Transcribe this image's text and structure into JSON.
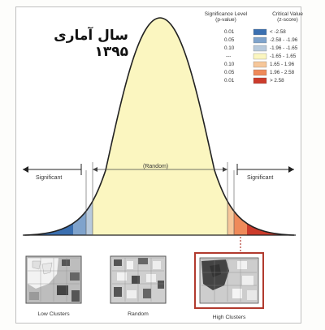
{
  "title": "سال آماری ۱۳۹۵",
  "legend": {
    "col1_header": [
      "Significance Level",
      "(p-value)"
    ],
    "col2_header": [
      "Critical Value",
      "(z-score)"
    ],
    "rows": [
      {
        "p": "0.01",
        "z": "< -2.58",
        "color": "#3a6fb0"
      },
      {
        "p": "0.05",
        "z": "-2.58 - -1.96",
        "color": "#7fa3cc"
      },
      {
        "p": "0.10",
        "z": "-1.96 - -1.65",
        "color": "#b8cadc"
      },
      {
        "p": "---",
        "z": "-1.65 - 1.65",
        "color": "#fbf6c0"
      },
      {
        "p": "0.10",
        "z": "1.65 - 1.96",
        "color": "#f6c79a"
      },
      {
        "p": "0.05",
        "z": "1.96 - 2.58",
        "color": "#ef8a5a"
      },
      {
        "p": "0.01",
        "z": "> 2.58",
        "color": "#cc3b2b"
      }
    ]
  },
  "curve": {
    "left_label": "Significant",
    "center_label": "(Random)",
    "right_label": "Significant"
  },
  "thumbnails": [
    {
      "caption": "Low Clusters"
    },
    {
      "caption": "Random"
    },
    {
      "caption": "High Clusters"
    }
  ]
}
